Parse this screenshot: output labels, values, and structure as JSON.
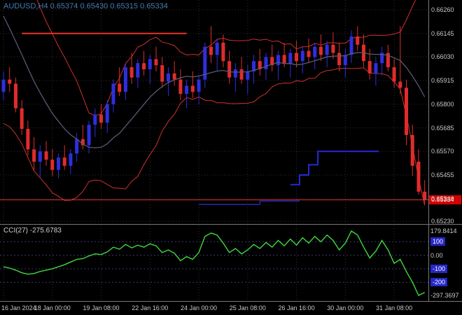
{
  "header": {
    "symbol_ohlc": "AUDUSD,H4 0.65374 0.65430 0.65315 0.65334"
  },
  "indicator_header": {
    "label": "CCI(27) -275.6783"
  },
  "colors": {
    "background": "#000000",
    "grid": "#2f2f2f",
    "axis_text": "#c9c9c9",
    "header_text": "#4a7ab5",
    "bull_candle": "#2e2ee0",
    "bear_candle": "#e02c2c",
    "band_line": "#cf3030",
    "ma_line": "#5a5a74",
    "cci_line": "#3fd93f",
    "level_line": "#3a3a78",
    "price_line": "#e03030",
    "price_tag_bg": "#d40000",
    "level_box_bg": "#2626c8",
    "separator": "#787878"
  },
  "chart_data": [
    {
      "type": "candlestick",
      "title": "AUDUSD H4",
      "symbol": "AUDUSD",
      "timeframe": "H4",
      "y_range": [
        0.6523,
        0.6626
      ],
      "current_price": {
        "label": "0.65334",
        "value": 0.65334
      },
      "y_axis": {
        "labels": [
          "0.66260",
          "0.66145",
          "0.66030",
          "0.65915",
          "0.65800",
          "0.65685",
          "0.65570",
          "0.65455",
          "0.65340",
          "0.65230"
        ],
        "prices": [
          0.6626,
          0.66145,
          0.6603,
          0.65915,
          0.658,
          0.65685,
          0.6557,
          0.65455,
          0.6534,
          0.6523
        ]
      },
      "x_axis_labels": [
        "16 Jan 2024",
        "18 Jan 00:00",
        "19 Jan 08:00",
        "22 Jan 16:00",
        "24 Jan 00:00",
        "25 Jan 08:00",
        "26 Jan 16:00",
        "30 Jan 00:00",
        "31 Jan 08:00"
      ],
      "x_label_candle_indices": [
        0,
        8,
        16,
        24,
        32,
        40,
        48,
        56,
        64
      ],
      "indicator_seed": [
        0.6668,
        0.666,
        0.6652,
        0.6644,
        0.6636,
        0.6628,
        0.662,
        0.6612,
        0.6604,
        0.6598,
        0.6594,
        0.659
      ],
      "ohlc": [
        [
          0.6586,
          0.6596,
          0.6582,
          0.6592
        ],
        [
          0.6592,
          0.6598,
          0.6586,
          0.659
        ],
        [
          0.659,
          0.6593,
          0.6576,
          0.6578
        ],
        [
          0.6578,
          0.6582,
          0.6565,
          0.6568
        ],
        [
          0.6568,
          0.6572,
          0.6555,
          0.6558
        ],
        [
          0.6558,
          0.6564,
          0.6548,
          0.6552
        ],
        [
          0.6552,
          0.656,
          0.6544,
          0.6557
        ],
        [
          0.6557,
          0.6562,
          0.655,
          0.6553
        ],
        [
          0.6553,
          0.6558,
          0.6545,
          0.6548
        ],
        [
          0.6548,
          0.6556,
          0.6544,
          0.6554
        ],
        [
          0.6554,
          0.656,
          0.6548,
          0.655
        ],
        [
          0.655,
          0.6558,
          0.6546,
          0.6556
        ],
        [
          0.6556,
          0.6566,
          0.6552,
          0.6563
        ],
        [
          0.6563,
          0.657,
          0.6558,
          0.656
        ],
        [
          0.656,
          0.6572,
          0.6556,
          0.657
        ],
        [
          0.657,
          0.6578,
          0.6564,
          0.6575
        ],
        [
          0.6575,
          0.658,
          0.6568,
          0.6571
        ],
        [
          0.6571,
          0.6582,
          0.6566,
          0.658
        ],
        [
          0.658,
          0.6592,
          0.6576,
          0.659
        ],
        [
          0.659,
          0.6598,
          0.6584,
          0.6586
        ],
        [
          0.6586,
          0.66,
          0.6582,
          0.6598
        ],
        [
          0.6598,
          0.6605,
          0.659,
          0.6593
        ],
        [
          0.6593,
          0.6602,
          0.6588,
          0.66
        ],
        [
          0.66,
          0.6606,
          0.6594,
          0.6597
        ],
        [
          0.6597,
          0.6604,
          0.659,
          0.6602
        ],
        [
          0.6602,
          0.6608,
          0.6596,
          0.6599
        ],
        [
          0.6599,
          0.6603,
          0.6588,
          0.6591
        ],
        [
          0.6591,
          0.6598,
          0.6584,
          0.6595
        ],
        [
          0.6595,
          0.6601,
          0.6589,
          0.6592
        ],
        [
          0.6592,
          0.6597,
          0.6582,
          0.6585
        ],
        [
          0.6585,
          0.6592,
          0.6578,
          0.6589
        ],
        [
          0.6589,
          0.6596,
          0.6583,
          0.6586
        ],
        [
          0.6586,
          0.6594,
          0.658,
          0.6592
        ],
        [
          0.6592,
          0.661,
          0.6588,
          0.6608
        ],
        [
          0.6608,
          0.6618,
          0.66,
          0.6604
        ],
        [
          0.6604,
          0.6612,
          0.6596,
          0.661
        ],
        [
          0.661,
          0.6614,
          0.6598,
          0.6601
        ],
        [
          0.6601,
          0.6606,
          0.659,
          0.6593
        ],
        [
          0.6593,
          0.66,
          0.6586,
          0.6597
        ],
        [
          0.6597,
          0.6603,
          0.659,
          0.6592
        ],
        [
          0.6592,
          0.6599,
          0.6585,
          0.6596
        ],
        [
          0.6596,
          0.6604,
          0.659,
          0.6601
        ],
        [
          0.6601,
          0.6607,
          0.6594,
          0.6597
        ],
        [
          0.6597,
          0.6605,
          0.6592,
          0.6603
        ],
        [
          0.6603,
          0.6609,
          0.6596,
          0.6599
        ],
        [
          0.6599,
          0.6606,
          0.6592,
          0.6604
        ],
        [
          0.6604,
          0.661,
          0.6598,
          0.66
        ],
        [
          0.66,
          0.6607,
          0.6593,
          0.6605
        ],
        [
          0.6605,
          0.6611,
          0.6598,
          0.6601
        ],
        [
          0.6601,
          0.6608,
          0.6595,
          0.6606
        ],
        [
          0.6606,
          0.6612,
          0.66,
          0.6603
        ],
        [
          0.6603,
          0.661,
          0.6597,
          0.6608
        ],
        [
          0.6608,
          0.6614,
          0.6601,
          0.6604
        ],
        [
          0.6604,
          0.6611,
          0.6598,
          0.6609
        ],
        [
          0.6609,
          0.6615,
          0.6602,
          0.6605
        ],
        [
          0.6605,
          0.661,
          0.6596,
          0.6599
        ],
        [
          0.6599,
          0.6607,
          0.6593,
          0.6604
        ],
        [
          0.6604,
          0.6616,
          0.66,
          0.6613
        ],
        [
          0.6613,
          0.6618,
          0.6606,
          0.6609
        ],
        [
          0.6609,
          0.6614,
          0.6598,
          0.6601
        ],
        [
          0.6601,
          0.6607,
          0.6592,
          0.6595
        ],
        [
          0.6595,
          0.6603,
          0.6589,
          0.66
        ],
        [
          0.66,
          0.6608,
          0.6594,
          0.6605
        ],
        [
          0.6605,
          0.6609,
          0.6596,
          0.6598
        ],
        [
          0.6598,
          0.6602,
          0.6588,
          0.6591
        ],
        [
          0.6591,
          0.6618,
          0.6585,
          0.6588
        ],
        [
          0.6588,
          0.6592,
          0.656,
          0.6565
        ],
        [
          0.6565,
          0.657,
          0.6545,
          0.655
        ],
        [
          0.6552,
          0.6558,
          0.6536,
          0.65374
        ],
        [
          0.65374,
          0.6543,
          0.65315,
          0.65334
        ]
      ],
      "overlay_segments": [
        {
          "name": "resistance-line",
          "color": "#e8342a",
          "width": 2,
          "points": [
            [
              3,
              0.66145
            ],
            [
              30,
              0.66145
            ]
          ]
        },
        {
          "name": "support-step-blue",
          "color": "#2828d8",
          "width": 2,
          "points": [
            [
              47,
              0.65408
            ],
            [
              48.5,
              0.65408
            ],
            [
              48.5,
              0.65455
            ],
            [
              50,
              0.65455
            ],
            [
              50,
              0.65505
            ],
            [
              51.5,
              0.65505
            ],
            [
              51.5,
              0.6557
            ],
            [
              61.5,
              0.6557
            ]
          ]
        },
        {
          "name": "support-navy",
          "color": "#1d1d8c",
          "width": 2,
          "points": [
            [
              32,
              0.65312
            ],
            [
              42,
              0.65312
            ],
            [
              42,
              0.65328
            ],
            [
              48.5,
              0.65328
            ]
          ]
        }
      ]
    },
    {
      "type": "line",
      "name": "CCI(27)",
      "period": 27,
      "current_value": -275.6783,
      "y_range": [
        -297.3697,
        179.8414
      ],
      "levels": [
        100,
        0,
        -100,
        -200
      ],
      "y_axis_labels": [
        {
          "text": "179.8414",
          "value": 179.8414,
          "boxed": false
        },
        {
          "text": "100",
          "value": 100,
          "boxed": true
        },
        {
          "text": "0.00",
          "value": 0,
          "boxed": false
        },
        {
          "text": "-100",
          "value": -100,
          "boxed": true
        },
        {
          "text": "-200",
          "value": -200,
          "boxed": true
        },
        {
          "text": "-297.3697",
          "value": -297.3697,
          "boxed": false
        }
      ],
      "values": [
        -85,
        -95,
        -110,
        -130,
        -140,
        -135,
        -120,
        -110,
        -100,
        -85,
        -70,
        -50,
        -30,
        -25,
        -5,
        10,
        5,
        25,
        60,
        45,
        80,
        55,
        75,
        60,
        85,
        70,
        20,
        40,
        15,
        -40,
        -10,
        -30,
        20,
        140,
        165,
        150,
        90,
        20,
        50,
        10,
        40,
        80,
        50,
        95,
        60,
        110,
        70,
        120,
        75,
        130,
        90,
        140,
        100,
        150,
        110,
        40,
        90,
        179.8414,
        150,
        60,
        -20,
        30,
        110,
        40,
        -60,
        -30,
        -120,
        -200,
        -297.3697,
        -275.6783
      ]
    }
  ]
}
